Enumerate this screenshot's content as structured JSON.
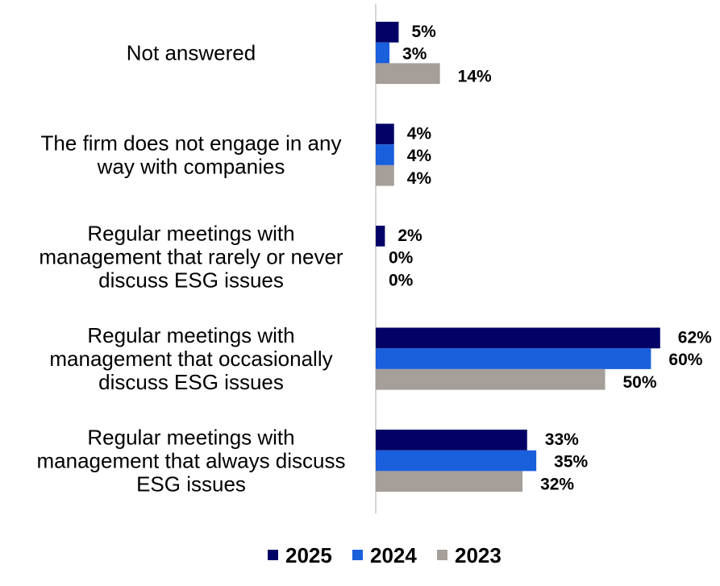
{
  "chart_data": {
    "type": "bar",
    "orientation": "horizontal",
    "categories": [
      [
        "Not answered"
      ],
      [
        "The firm does not engage in any",
        "way with companies"
      ],
      [
        "Regular meetings with",
        "management that rarely or never",
        "discuss ESG issues"
      ],
      [
        "Regular meetings with",
        "management that occasionally",
        "discuss ESG issues"
      ],
      [
        "Regular meetings with",
        "management that always discuss",
        "ESG issues"
      ]
    ],
    "series": [
      {
        "name": "2025",
        "color": "#020266",
        "values": [
          5,
          4,
          2,
          62,
          33
        ]
      },
      {
        "name": "2024",
        "color": "#1a5fdc",
        "values": [
          3,
          4,
          0,
          60,
          35
        ]
      },
      {
        "name": "2023",
        "color": "#a59e99",
        "values": [
          14,
          4,
          0,
          50,
          32
        ]
      }
    ],
    "value_suffix": "%",
    "xlim": [
      0,
      65
    ],
    "grid": false,
    "legend_position": "bottom"
  }
}
